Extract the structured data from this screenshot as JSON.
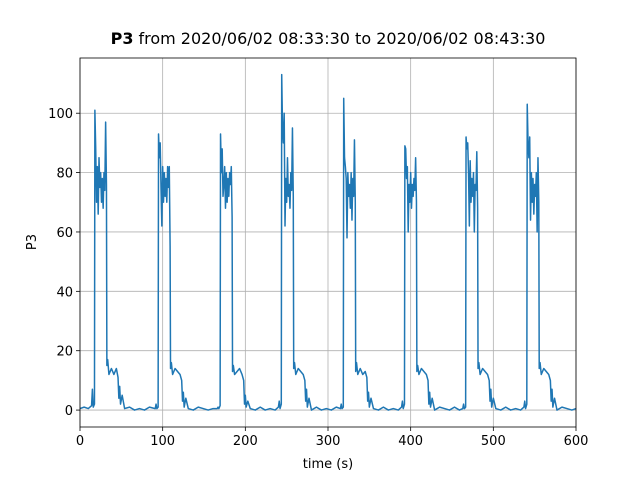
{
  "chart_data": {
    "type": "line",
    "title": "from 2020/06/02 08:33:30 to 2020/06/02 08:43:30",
    "xlabel": "time (s)",
    "ylabel": "P3",
    "xlim": [
      0,
      600
    ],
    "ylim": [
      -5.7,
      118.6
    ],
    "xticks": [
      0,
      100,
      200,
      300,
      400,
      500,
      600
    ],
    "yticks": [
      0,
      20,
      40,
      60,
      80,
      100
    ],
    "grid": true,
    "x": [
      0,
      5,
      10,
      14,
      15,
      16,
      17.5,
      18,
      19,
      20,
      21,
      22,
      23,
      24,
      25,
      26,
      27,
      28,
      29,
      30,
      31,
      32,
      32.5,
      33.5,
      35,
      38,
      41,
      44,
      46,
      47,
      48,
      49,
      51,
      54,
      60,
      66,
      72,
      78,
      84,
      91,
      92,
      93,
      94.5,
      95,
      96,
      97,
      98,
      99,
      100,
      101,
      102,
      103,
      104,
      105,
      106,
      107,
      108,
      109,
      109.5,
      110.5,
      112,
      115,
      118,
      121,
      123,
      124,
      125,
      126,
      128,
      131,
      137,
      143,
      149,
      155,
      161,
      166,
      167,
      168,
      169.5,
      170,
      171,
      172,
      173,
      174,
      175,
      176,
      177,
      178,
      179,
      180,
      181,
      182,
      183,
      184,
      184.5,
      185.5,
      187,
      190,
      193,
      196,
      198,
      199,
      200,
      201,
      203,
      206,
      212,
      218,
      224,
      230,
      236,
      240,
      241,
      242,
      243.5,
      244,
      245,
      246,
      247,
      248,
      249,
      250,
      251,
      252,
      253,
      254,
      255,
      256,
      257,
      258,
      258.5,
      259.5,
      261,
      264,
      267,
      270,
      272,
      273,
      274,
      275,
      277,
      280,
      286,
      292,
      298,
      304,
      310,
      315,
      316,
      317,
      318.5,
      319,
      320,
      321,
      322,
      323,
      324,
      325,
      326,
      327,
      328,
      329,
      330,
      331,
      332,
      333,
      333.5,
      334.5,
      336,
      339,
      342,
      345,
      347,
      348,
      349,
      350,
      352,
      355,
      361,
      367,
      373,
      379,
      385,
      389,
      390,
      391,
      392.5,
      393,
      394,
      395,
      396,
      397,
      398,
      399,
      400,
      401,
      402,
      403,
      404,
      405,
      406,
      407,
      407.5,
      408.5,
      410,
      413,
      416,
      419,
      421,
      422,
      423,
      424,
      426,
      429,
      435,
      441,
      447,
      453,
      459,
      463,
      464,
      465,
      466.5,
      467,
      468,
      469,
      470,
      471,
      472,
      473,
      474,
      475,
      476,
      477,
      478,
      479,
      480,
      481,
      481.5,
      482.5,
      484,
      487,
      490,
      493,
      495,
      496,
      497,
      498,
      500,
      503,
      509,
      515,
      521,
      527,
      533,
      537,
      538,
      539,
      540.5,
      541,
      542,
      543,
      544,
      545,
      546,
      547,
      548,
      549,
      550,
      551,
      552,
      553,
      554,
      555,
      555.5,
      556.5,
      558,
      561,
      564,
      567,
      569,
      570,
      571,
      572,
      574,
      577,
      583,
      589,
      595,
      600
    ],
    "series": [
      {
        "name": "P3",
        "color": "#1f77b4",
        "values": [
          0.5,
          1,
          0.5,
          1.5,
          7,
          1,
          2,
          101,
          88,
          70,
          82,
          66,
          85,
          75,
          80,
          70,
          78,
          68,
          80,
          74,
          97,
          76,
          15,
          17,
          12,
          14,
          12,
          14,
          11,
          4,
          8,
          2,
          5,
          0.5,
          1,
          0,
          0.5,
          0,
          1,
          0.5,
          2,
          0.5,
          1,
          93,
          85,
          90,
          75,
          62,
          82,
          70,
          80,
          72,
          78,
          70,
          82,
          75,
          82,
          55,
          14,
          16,
          12,
          14,
          13,
          12,
          10,
          3,
          6,
          1,
          4,
          0.5,
          0,
          1,
          0.5,
          0,
          0.5,
          0.5,
          1,
          0.5,
          1.5,
          93,
          80,
          88,
          72,
          76,
          82,
          68,
          80,
          70,
          78,
          72,
          80,
          76,
          82,
          65,
          13,
          15,
          12,
          13,
          14,
          12,
          10,
          2,
          5,
          1,
          3,
          0.5,
          0,
          1,
          0,
          0.5,
          0,
          1,
          3,
          0.5,
          2,
          113,
          95,
          90,
          100,
          62,
          78,
          70,
          85,
          72,
          76,
          68,
          80,
          74,
          95,
          72,
          14,
          16,
          12,
          14,
          13,
          12,
          10,
          3,
          7,
          1,
          4,
          0,
          1,
          0,
          0.5,
          0,
          1,
          0.5,
          2,
          0.5,
          1,
          105,
          85,
          82,
          78,
          58,
          80,
          72,
          76,
          68,
          80,
          64,
          78,
          72,
          91,
          70,
          13,
          16,
          12,
          14,
          12,
          13,
          11,
          3,
          6,
          1,
          4,
          0.5,
          0,
          1,
          0,
          0.5,
          0,
          1,
          3,
          0.5,
          2,
          89,
          88,
          78,
          82,
          60,
          76,
          70,
          80,
          68,
          76,
          72,
          78,
          74,
          85,
          70,
          13,
          15,
          12,
          14,
          13,
          12,
          10,
          2,
          6,
          1,
          4,
          0,
          1,
          0.5,
          0,
          1,
          0,
          0.5,
          2,
          0.5,
          1,
          92,
          88,
          90,
          80,
          62,
          84,
          70,
          78,
          72,
          80,
          60,
          76,
          74,
          87,
          68,
          14,
          16,
          12,
          14,
          13,
          12,
          10,
          3,
          7,
          1,
          4,
          0.5,
          0,
          1,
          0,
          0.5,
          0,
          1,
          3,
          0.5,
          2,
          103,
          90,
          85,
          92,
          64,
          80,
          70,
          78,
          66,
          76,
          72,
          80,
          60,
          85,
          70,
          14,
          16,
          12,
          14,
          13,
          12,
          10,
          3,
          7,
          1,
          4,
          0,
          1,
          0.5,
          0,
          0.5
        ]
      }
    ]
  }
}
